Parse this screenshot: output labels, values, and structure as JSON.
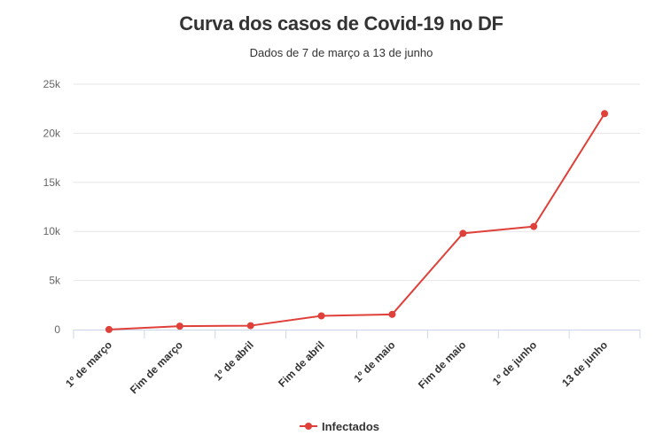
{
  "chart_data": {
    "type": "line",
    "title": "Curva dos casos de Covid-19 no DF",
    "subtitle": "Dados de 7 de março a 13 de junho",
    "categories": [
      "1º de março",
      "Fim de março",
      "1º de abril",
      "Fim de abril",
      "1º de maio",
      "Fim de maio",
      "1º de junho",
      "13 de junho"
    ],
    "series": [
      {
        "name": "Infectados",
        "color": "#e0403a",
        "values": [
          10,
          350,
          400,
          1400,
          1550,
          9800,
          10500,
          22000
        ]
      }
    ],
    "ylim": [
      0,
      25000
    ],
    "yticks": [
      {
        "value": 0,
        "label": "0"
      },
      {
        "value": 5000,
        "label": "5k"
      },
      {
        "value": 10000,
        "label": "10k"
      },
      {
        "value": 15000,
        "label": "15k"
      },
      {
        "value": 20000,
        "label": "20k"
      },
      {
        "value": 25000,
        "label": "25k"
      }
    ],
    "grid": true,
    "legend": "bottom-center"
  }
}
